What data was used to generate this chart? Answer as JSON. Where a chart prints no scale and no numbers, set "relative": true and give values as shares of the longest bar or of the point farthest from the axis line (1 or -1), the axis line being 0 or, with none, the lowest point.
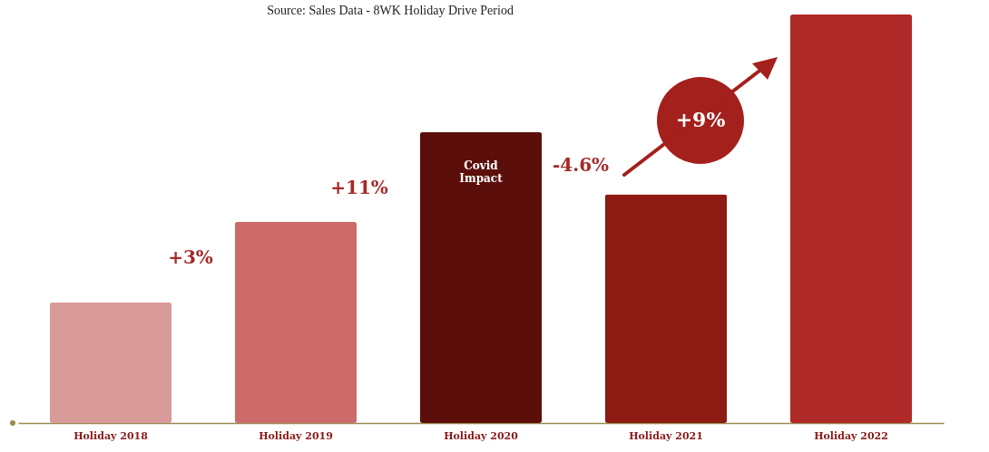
{
  "chart_data": {
    "type": "bar",
    "relative": true,
    "categories": [
      "Holiday 2018",
      "Holiday 2019",
      "Holiday 2020",
      "Holiday 2021",
      "Holiday 2022"
    ],
    "values": [
      0.295,
      0.492,
      0.712,
      0.56,
      1
    ],
    "colors": [
      "#d99a9a",
      "#cd6b6b",
      "#5c0f0a",
      "#8e1a14",
      "#b02a2a"
    ],
    "annotations": [
      "Source: Sales Data - 8WK Holiday Drive Period",
      "+3%",
      "+11%",
      "Covid Impact",
      "-4.6%",
      "+9%"
    ]
  }
}
